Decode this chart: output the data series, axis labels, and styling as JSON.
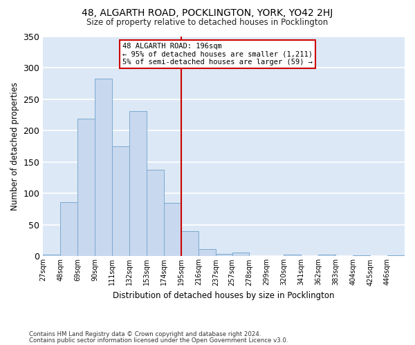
{
  "title": "48, ALGARTH ROAD, POCKLINGTON, YORK, YO42 2HJ",
  "subtitle": "Size of property relative to detached houses in Pocklington",
  "xlabel": "Distribution of detached houses by size in Pocklington",
  "ylabel": "Number of detached properties",
  "bar_color": "#c8d8ee",
  "bar_edge_color": "#7aaad0",
  "background_color": "#dce8f5",
  "grid_color": "#ffffff",
  "annotation_text": "48 ALGARTH ROAD: 196sqm\n← 95% of detached houses are smaller (1,211)\n5% of semi-detached houses are larger (59) →",
  "vline_color": "#cc0000",
  "categories": [
    "27sqm",
    "48sqm",
    "69sqm",
    "90sqm",
    "111sqm",
    "132sqm",
    "153sqm",
    "174sqm",
    "195sqm",
    "216sqm",
    "237sqm",
    "257sqm",
    "278sqm",
    "299sqm",
    "320sqm",
    "341sqm",
    "362sqm",
    "383sqm",
    "404sqm",
    "425sqm",
    "446sqm"
  ],
  "bin_edges": [
    27,
    48,
    69,
    90,
    111,
    132,
    153,
    174,
    195,
    216,
    237,
    257,
    278,
    299,
    320,
    341,
    362,
    383,
    404,
    425,
    446
  ],
  "bin_width": 21,
  "values": [
    3,
    86,
    219,
    283,
    175,
    231,
    138,
    85,
    40,
    11,
    4,
    6,
    0,
    0,
    3,
    0,
    3,
    0,
    2,
    0,
    2
  ],
  "ylim": [
    0,
    350
  ],
  "yticks": [
    0,
    50,
    100,
    150,
    200,
    250,
    300,
    350
  ],
  "vline_x": 195,
  "footnote1": "Contains HM Land Registry data © Crown copyright and database right 2024.",
  "footnote2": "Contains public sector information licensed under the Open Government Licence v3.0."
}
